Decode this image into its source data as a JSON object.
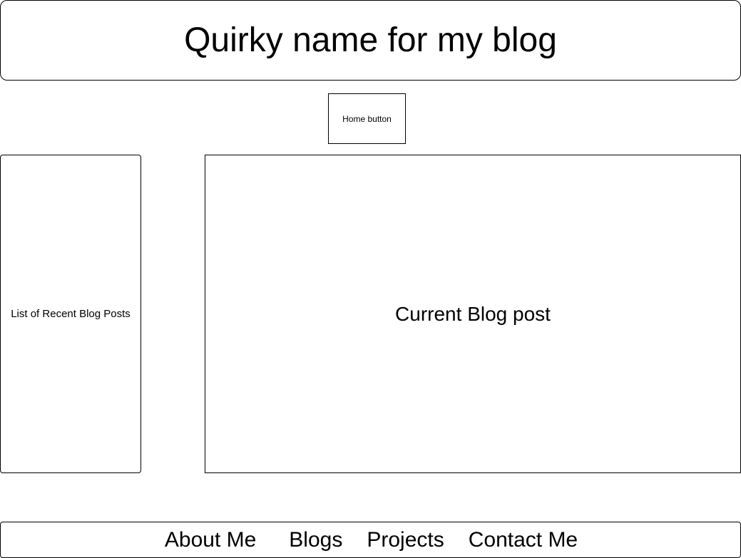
{
  "header": {
    "title": "Quirky name for my blog"
  },
  "home_button": {
    "label": "Home button"
  },
  "sidebar": {
    "label": "List of Recent Blog Posts"
  },
  "main": {
    "label": "Current Blog post"
  },
  "footer": {
    "links": [
      {
        "label": "About Me"
      },
      {
        "label": "Blogs"
      },
      {
        "label": "Projects"
      },
      {
        "label": "Contact Me"
      }
    ]
  }
}
